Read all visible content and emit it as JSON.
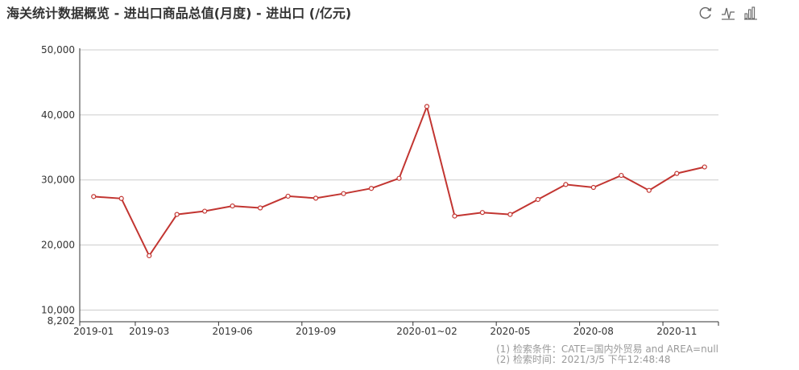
{
  "title": "海关统计数据概览 - 进出口商品总值(月度)  - 进出口 (/亿元)",
  "toolbox": {
    "icons": [
      "restore-icon",
      "line-chart-icon",
      "bar-chart-icon"
    ]
  },
  "footer": {
    "line1": "(1) 检索条件：CATE=国内外贸易 and AREA=null",
    "line2": "(2) 检索时间：2021/3/5 下午12:48:48"
  },
  "chart_data": {
    "type": "line",
    "x": [
      "2019-01",
      "2019-02",
      "2019-03",
      "2019-04",
      "2019-05",
      "2019-06",
      "2019-07",
      "2019-08",
      "2019-09",
      "2019-10",
      "2019-11",
      "2019-12",
      "2020-01~02",
      "2020-03",
      "2020-04",
      "2020-05",
      "2020-06",
      "2020-07",
      "2020-08",
      "2020-09",
      "2020-10",
      "2020-11",
      "2020-12"
    ],
    "xtick_labels": [
      "2019-01",
      "2019-03",
      "2019-06",
      "2019-09",
      "2020-01~02",
      "2020-05",
      "2020-08",
      "2020-11"
    ],
    "series": [
      {
        "values": [
          27450,
          27150,
          18350,
          24700,
          25200,
          26000,
          25700,
          27500,
          27200,
          27900,
          28700,
          30250,
          41300,
          24450,
          25000,
          24700,
          27000,
          29300,
          28850,
          30700,
          28400,
          31000,
          32000
        ],
        "color": "#c23531"
      }
    ],
    "ylim": [
      8202,
      50000
    ],
    "yticks": [
      10000,
      20000,
      30000,
      40000,
      50000
    ],
    "ytick_labels": [
      "10,000",
      "20,000",
      "30,000",
      "40,000",
      "50,000"
    ],
    "ymin_label": "8,202",
    "grid": true,
    "legend": "none"
  }
}
